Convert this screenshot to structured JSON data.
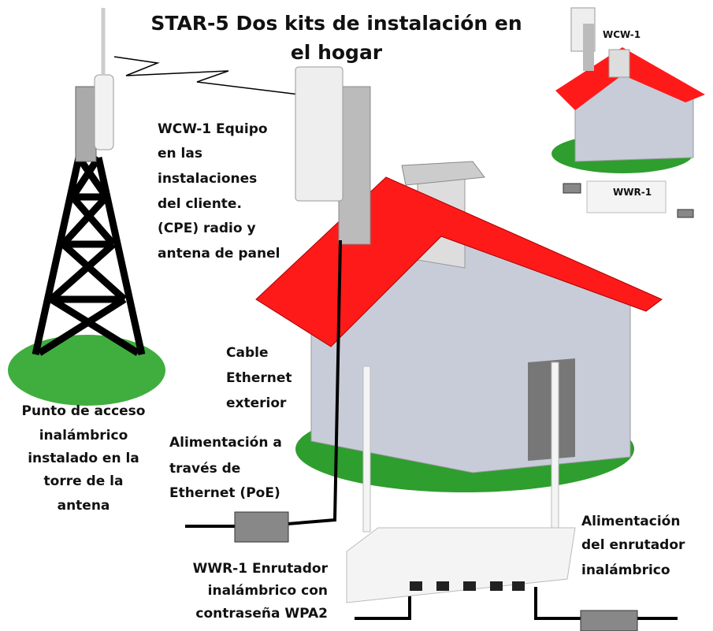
{
  "title": [
    "STAR-5 Dos kits de instalación en",
    "el hogar"
  ],
  "labels": {
    "cpe": [
      "WCW-1 Equipo",
      "en las",
      "instalaciones",
      "del cliente.",
      "(CPE) radio y",
      "antena de panel"
    ],
    "cable": [
      "Cable",
      "Ethernet",
      "exterior"
    ],
    "poe": [
      "Alimentación a",
      "través de",
      "Ethernet (PoE)"
    ],
    "access_point": [
      "Punto de acceso",
      "inalámbrico",
      "instalado en la",
      "torre de la",
      "antena"
    ],
    "router_power": [
      "Alimentación",
      "del enrutador",
      "inalámbrico"
    ],
    "router": [
      "WWR-1 Enrutador",
      "inalámbrico con",
      "contraseña WPA2"
    ],
    "small_cpe": "WCW-1",
    "small_router": "WWR-1"
  }
}
